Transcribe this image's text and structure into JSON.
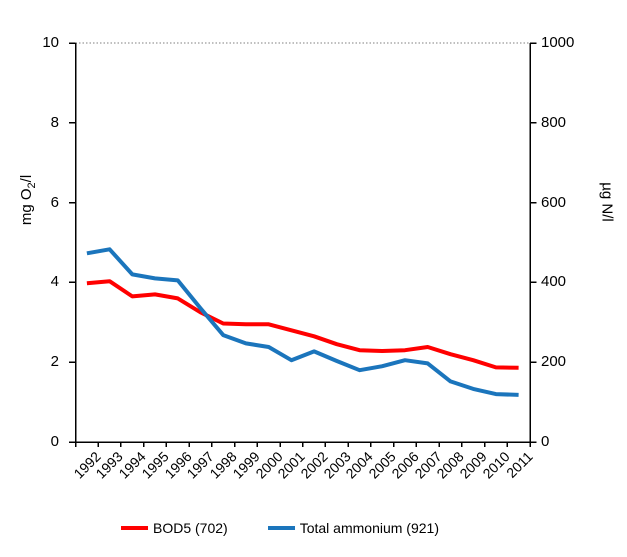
{
  "chart_data": {
    "type": "line",
    "x": [
      "1992",
      "1993",
      "1994",
      "1995",
      "1996",
      "1997",
      "1998",
      "1999",
      "2000",
      "2001",
      "2002",
      "2003",
      "2004",
      "2005",
      "2006",
      "2007",
      "2008",
      "2009",
      "2010",
      "2011"
    ],
    "series": [
      {
        "name": "BOD5 (702)",
        "axis": "left",
        "color": "#FF0000",
        "values": [
          3.98,
          4.03,
          3.65,
          3.7,
          3.6,
          3.25,
          2.97,
          2.95,
          2.95,
          2.8,
          2.65,
          2.45,
          2.3,
          2.28,
          2.3,
          2.38,
          2.2,
          2.05,
          1.87,
          1.86
        ]
      },
      {
        "name": "Total ammonium (921)",
        "axis": "right",
        "color": "#1B75BC",
        "values": [
          473,
          483,
          420,
          410,
          405,
          335,
          268,
          247,
          238,
          205,
          227,
          203,
          180,
          190,
          205,
          197,
          152,
          133,
          120,
          118
        ]
      }
    ],
    "left_axis": {
      "label": "mg O2/l",
      "label_main": "mg O",
      "label_sub": "2",
      "label_end": "/l",
      "min": 0,
      "max": 10,
      "ticks": [
        0,
        2,
        4,
        6,
        8,
        10
      ]
    },
    "right_axis": {
      "label": "µg N/l",
      "min": 0,
      "max": 1000,
      "ticks": [
        0,
        200,
        400,
        600,
        800,
        1000
      ]
    },
    "grid": "dotted line at top value only",
    "legend_position": "bottom-center",
    "title": ""
  },
  "colors": {
    "axis": "#000000",
    "gridline": "#7F7F7F",
    "background": "#FFFFFF"
  }
}
